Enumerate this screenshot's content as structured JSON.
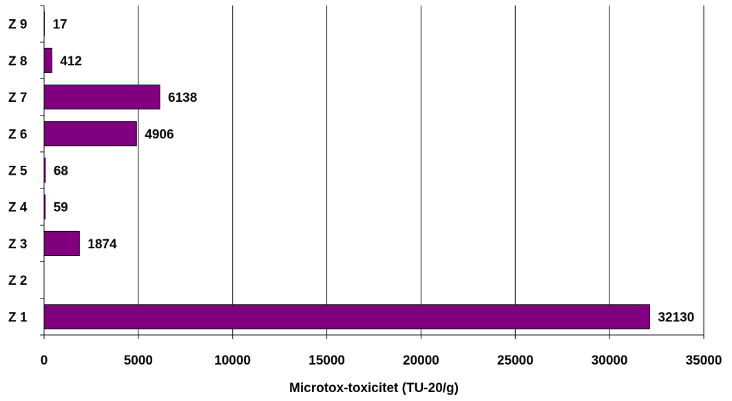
{
  "chart_data": {
    "type": "bar",
    "orientation": "horizontal",
    "categories": [
      "Z 1",
      "Z 2",
      "Z 3",
      "Z 4",
      "Z 5",
      "Z 6",
      "Z 7",
      "Z 8",
      "Z 9"
    ],
    "values": [
      32130,
      null,
      1874,
      59,
      68,
      4906,
      6138,
      412,
      17
    ],
    "data_labels": [
      "32130",
      "",
      "1874",
      "59",
      "68",
      "4906",
      "6138",
      "412",
      "17"
    ],
    "title": "",
    "xlabel": "Microtox-toxicitet (TU-20/g)",
    "ylabel": "",
    "xlim": [
      0,
      35000
    ],
    "xticks": [
      0,
      5000,
      10000,
      15000,
      20000,
      25000,
      30000,
      35000
    ],
    "grid": "vertical",
    "legend": "none",
    "bar_color": "#800080",
    "bar_edge_color": "#000000"
  }
}
